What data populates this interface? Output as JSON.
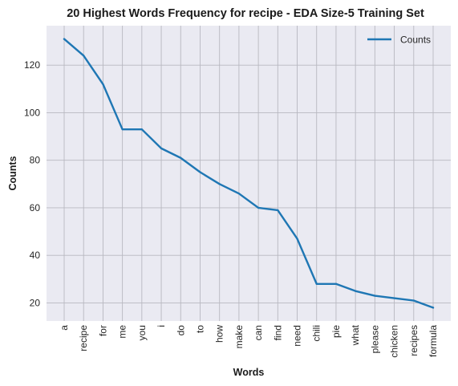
{
  "chart_data": {
    "type": "line",
    "title": "20 Highest Words Frequency for recipe - EDA Size-5 Training Set",
    "xlabel": "Words",
    "ylabel": "Counts",
    "categories": [
      "a",
      "recipe",
      "for",
      "me",
      "you",
      "i",
      "do",
      "to",
      "how",
      "make",
      "can",
      "find",
      "need",
      "chili",
      "pie",
      "what",
      "please",
      "chicken",
      "recipes",
      "formula"
    ],
    "series": [
      {
        "name": "Counts",
        "values": [
          131,
          124,
          112,
          93,
          93,
          85,
          81,
          75,
          70,
          66,
          60,
          59,
          47,
          28,
          28,
          25,
          23,
          22,
          21,
          18
        ],
        "color": "#1f77b4"
      }
    ],
    "ylim": [
      12.4,
      136.6
    ],
    "yticks": [
      20,
      40,
      60,
      80,
      100,
      120
    ],
    "grid": true,
    "legend_position": "top-right",
    "background_color": "#eaeaf2",
    "grid_color": "#b8b8c0"
  }
}
